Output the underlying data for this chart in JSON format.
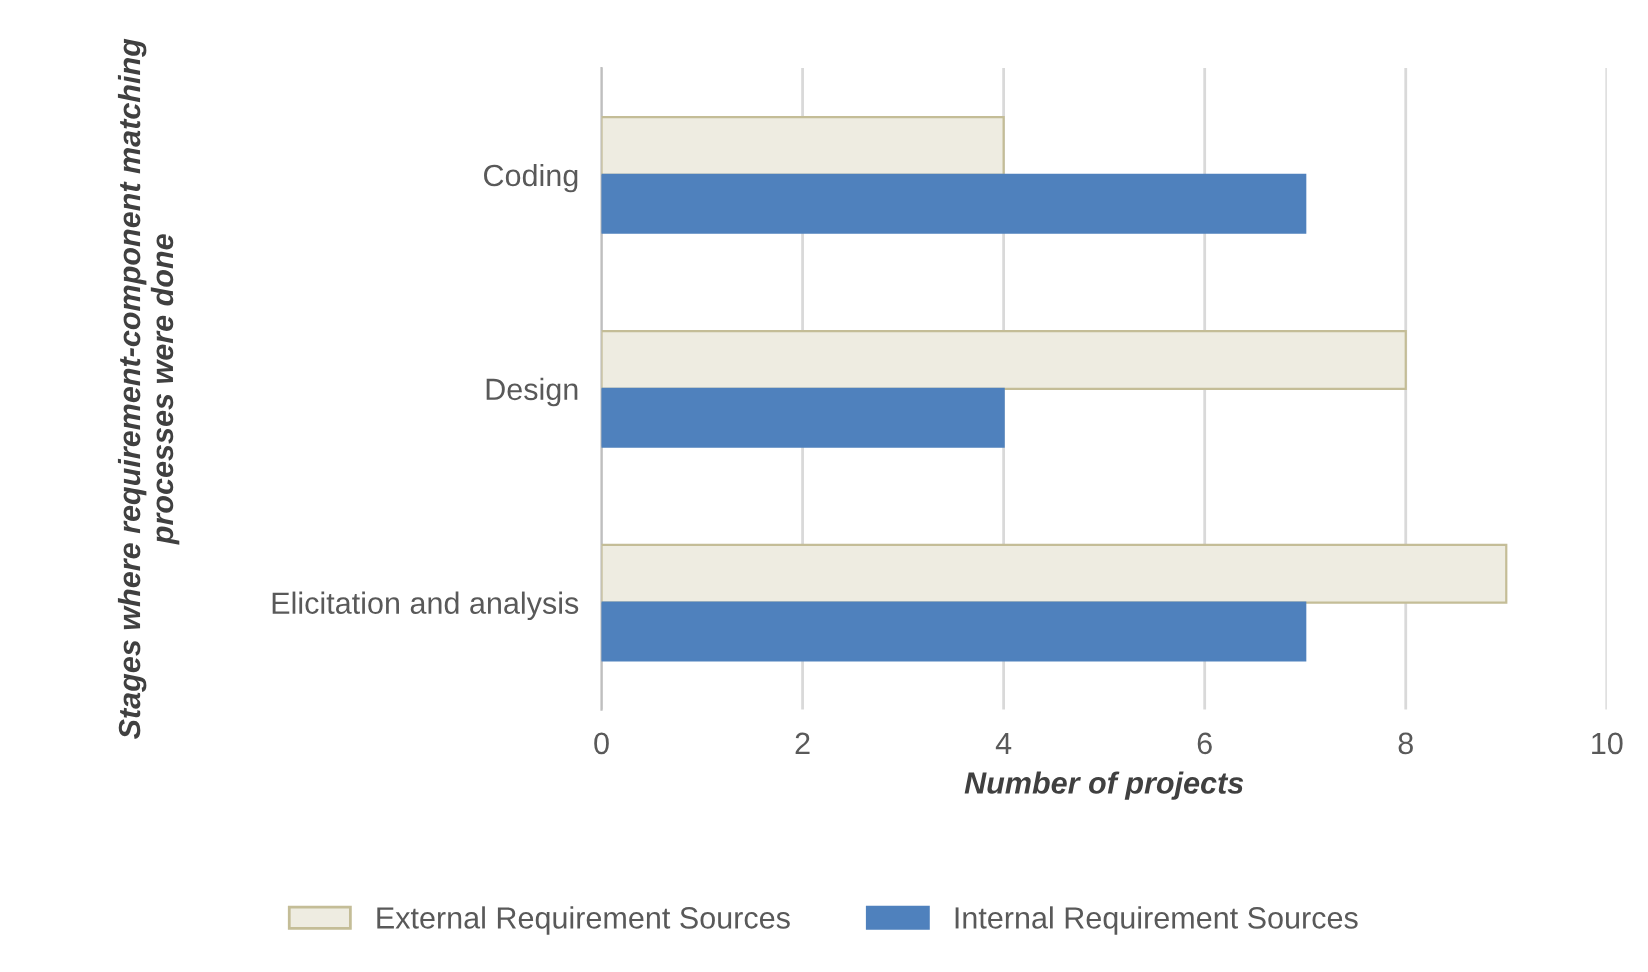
{
  "chart_data": {
    "type": "bar",
    "orientation": "horizontal",
    "xlabel": "Number of projects",
    "ylabel": "Stages where requirement-component matching processes were done",
    "categories": [
      "Coding",
      "Design",
      "Elicitation and analysis"
    ],
    "series": [
      {
        "name": "External Requirement Sources",
        "color": "#eeece1",
        "values": [
          4,
          8,
          9
        ]
      },
      {
        "name": "Internal Requirement Sources",
        "color": "#4f81bd",
        "values": [
          7,
          4,
          7
        ]
      }
    ],
    "xlim": [
      0,
      10
    ],
    "xticks": [
      0,
      2,
      4,
      6,
      8,
      10
    ],
    "grid": "x",
    "legend": "bottom"
  }
}
